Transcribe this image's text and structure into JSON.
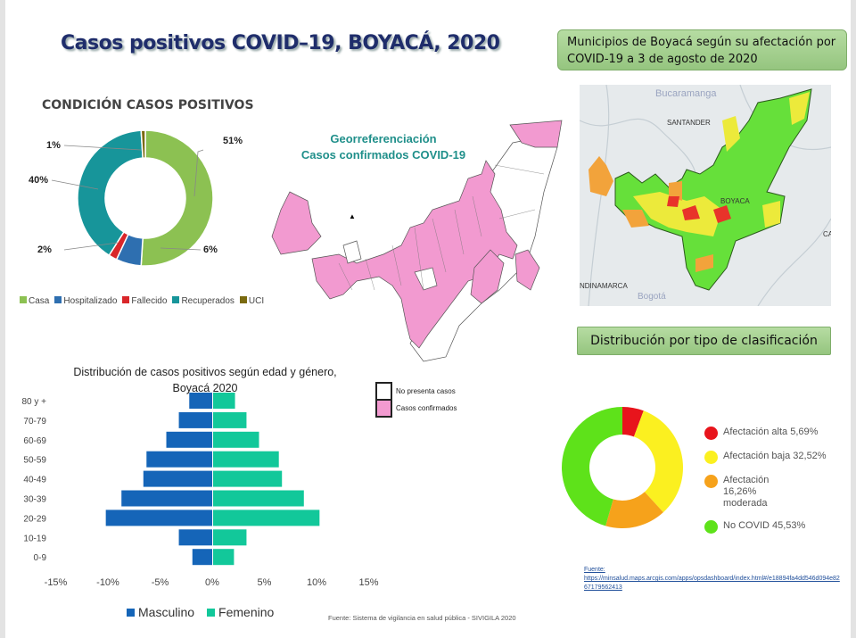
{
  "title": "Casos positivos COVID–19, BOYACÁ, 2020",
  "condicion": {
    "title": "CONDICIÓN CASOS POSITIVOS",
    "labels": {
      "casa": "51%",
      "hosp": "6%",
      "fall": "2%",
      "recu": "40%",
      "uci": "1%"
    },
    "legend": [
      "Casa",
      "Hospitalizado",
      "Fallecido",
      "Recuperados",
      "UCI"
    ]
  },
  "georef": {
    "title_line1": "Georreferenciación",
    "title_line2": "Casos confirmados COVID-19",
    "legend": [
      "No presenta casos",
      "Casos confirmados"
    ]
  },
  "municipios_box": "Municipios de Boyacá según su afectación por COVID-19 a 3 de agosto de 2020",
  "map_labels": {
    "bucaramanga": "Bucaramanga",
    "santander": "SANTANDER",
    "boyaca": "BOYACA",
    "cundinamarca": "NDINAMARCA",
    "bogota": "Bogotá",
    "ca": "CA"
  },
  "distribucion_box": "Distribución por tipo de clasificación",
  "pyramid": {
    "title_line1": "Distribución de casos positivos según edad y género,",
    "title_line2": "Boyacá 2020",
    "fuente": "Fuente: Sistema de vigilancia en salud pública - SIVIGILA 2020"
  },
  "clasificacion": {
    "legend_text": [
      "Afectación alta  5,69%",
      "Afectación baja  32,52%",
      "Afectación  16,26% moderada",
      "No COVID  45,53%"
    ],
    "fuente_label": "Fuente:",
    "fuente_url": "https://minsalud.maps.arcgis.com/apps/opsdashboard/index.html#/e18894fa4dd546d094e8267179562413"
  },
  "chart_data": [
    {
      "type": "pie",
      "title": "CONDICIÓN CASOS POSITIVOS",
      "categories": [
        "Casa",
        "Hospitalizado",
        "Fallecido",
        "Recuperados",
        "UCI"
      ],
      "values": [
        51,
        6,
        2,
        40,
        1
      ],
      "colors": [
        "#8cc152",
        "#2e6fb0",
        "#d9262a",
        "#17959a",
        "#7a6a10"
      ],
      "legend": "bottom"
    },
    {
      "type": "bar",
      "orientation": "horizontal-pyramid",
      "title": "Distribución de casos positivos según edad y género, Boyacá 2020",
      "categories": [
        "80 y +",
        "70-79",
        "60-69",
        "50-59",
        "40-49",
        "30-39",
        "20-29",
        "10-19",
        "0-9"
      ],
      "series": [
        {
          "name": "Masculino",
          "color": "#1565b8",
          "values": [
            -2.2,
            -3.2,
            -4.4,
            -6.3,
            -6.6,
            -8.7,
            -10.2,
            -3.2,
            -1.9
          ]
        },
        {
          "name": "Femenino",
          "color": "#12c89a",
          "values": [
            2.1,
            3.2,
            4.4,
            6.3,
            6.6,
            8.7,
            10.2,
            3.2,
            2.0
          ]
        }
      ],
      "xlim": [
        -15,
        15
      ],
      "xticks": [
        "-15%",
        "-10%",
        "-5%",
        "0%",
        "5%",
        "10%",
        "15%"
      ],
      "legend": "bottom"
    },
    {
      "type": "pie",
      "title": "Distribución por tipo de clasificación",
      "categories": [
        "Afectación alta",
        "Afectación baja",
        "Afectación moderada",
        "No COVID"
      ],
      "values": [
        5.69,
        32.52,
        16.26,
        45.53
      ],
      "colors": [
        "#e8141c",
        "#fbf020",
        "#f6a21b",
        "#5ee21a"
      ],
      "legend": "right"
    }
  ]
}
